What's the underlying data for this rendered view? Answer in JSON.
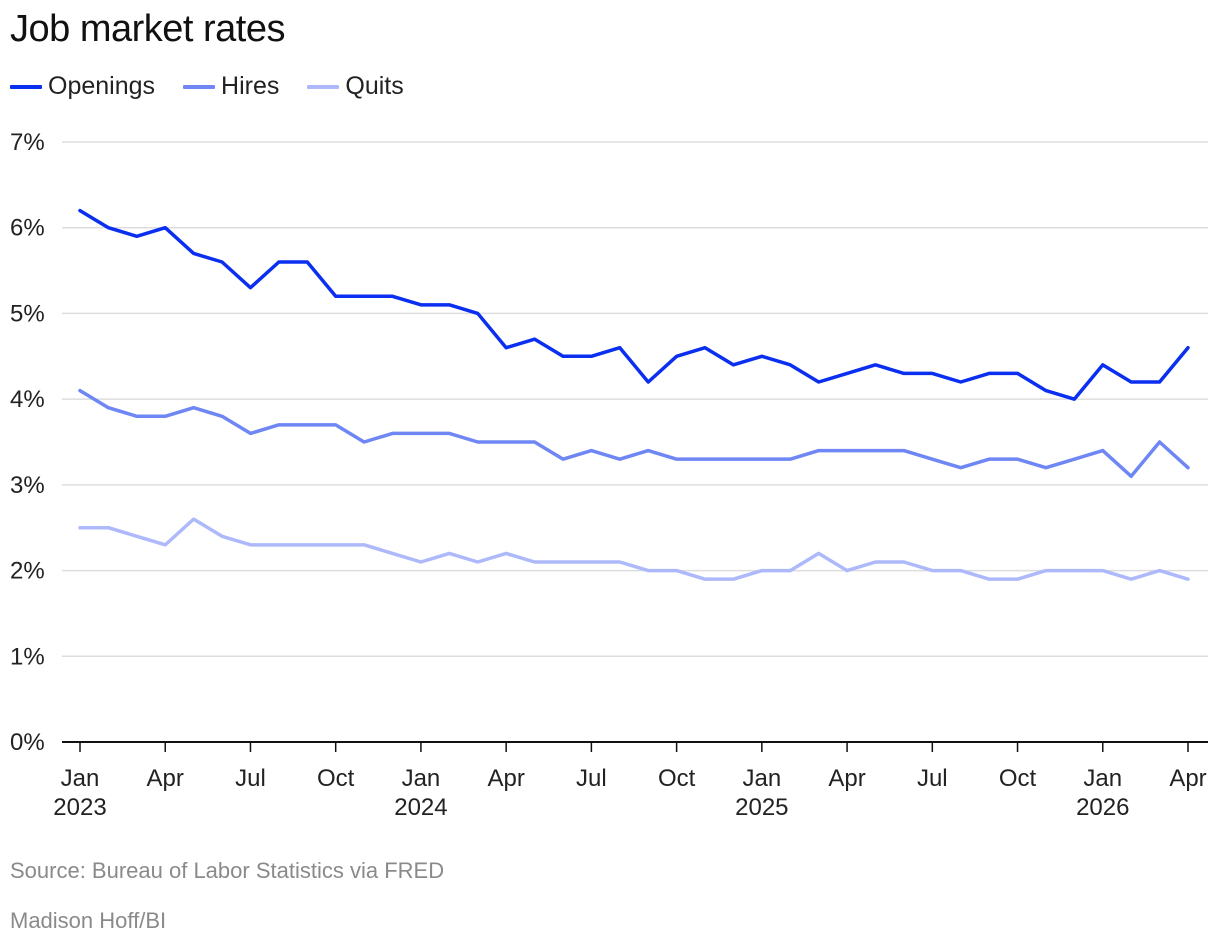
{
  "chart_data": {
    "type": "line",
    "title": "Job market rates",
    "xlabel": "",
    "ylabel": "",
    "ylim": [
      0,
      7
    ],
    "yticks": [
      "0%",
      "1%",
      "2%",
      "3%",
      "4%",
      "5%",
      "6%",
      "7%"
    ],
    "xticks": [
      {
        "index": 0,
        "month": "Jan",
        "year": "2023"
      },
      {
        "index": 3,
        "month": "Apr",
        "year": ""
      },
      {
        "index": 6,
        "month": "Jul",
        "year": ""
      },
      {
        "index": 9,
        "month": "Oct",
        "year": ""
      },
      {
        "index": 12,
        "month": "Jan",
        "year": "2024"
      },
      {
        "index": 15,
        "month": "Apr",
        "year": ""
      },
      {
        "index": 18,
        "month": "Jul",
        "year": ""
      },
      {
        "index": 21,
        "month": "Oct",
        "year": ""
      },
      {
        "index": 24,
        "month": "Jan",
        "year": "2025"
      },
      {
        "index": 27,
        "month": "Apr",
        "year": ""
      },
      {
        "index": 30,
        "month": "Jul",
        "year": ""
      },
      {
        "index": 33,
        "month": "Oct",
        "year": ""
      },
      {
        "index": 36,
        "month": "Jan",
        "year": "2026"
      },
      {
        "index": 39,
        "month": "Apr",
        "year": ""
      }
    ],
    "x": [
      "2023-01",
      "2023-02",
      "2023-03",
      "2023-04",
      "2023-05",
      "2023-06",
      "2023-07",
      "2023-08",
      "2023-09",
      "2023-10",
      "2023-11",
      "2023-12",
      "2024-01",
      "2024-02",
      "2024-03",
      "2024-04",
      "2024-05",
      "2024-06",
      "2024-07",
      "2024-08",
      "2024-09",
      "2024-10",
      "2024-11",
      "2024-12",
      "2025-01",
      "2025-02",
      "2025-03",
      "2025-04",
      "2025-05",
      "2025-06",
      "2025-07",
      "2025-08",
      "2025-09",
      "2025-10",
      "2025-11",
      "2025-12",
      "2026-01",
      "2026-02",
      "2026-03",
      "2026-04"
    ],
    "series": [
      {
        "name": "Openings",
        "color": "#0a2ff0",
        "values": [
          6.2,
          6.0,
          5.9,
          6.0,
          5.7,
          5.6,
          5.3,
          5.6,
          5.6,
          5.2,
          5.2,
          5.2,
          5.1,
          5.1,
          5.0,
          4.6,
          4.7,
          4.5,
          4.5,
          4.6,
          4.2,
          4.5,
          4.6,
          4.4,
          4.5,
          4.4,
          4.2,
          4.3,
          4.4,
          4.3,
          4.3,
          4.2,
          4.3,
          4.3,
          4.1,
          4.0,
          4.4,
          4.2,
          4.2,
          4.6
        ]
      },
      {
        "name": "Hires",
        "color": "#6f87f5",
        "values": [
          4.1,
          3.9,
          3.8,
          3.8,
          3.9,
          3.8,
          3.6,
          3.7,
          3.7,
          3.7,
          3.5,
          3.6,
          3.6,
          3.6,
          3.5,
          3.5,
          3.5,
          3.3,
          3.4,
          3.3,
          3.4,
          3.3,
          3.3,
          3.3,
          3.3,
          3.3,
          3.4,
          3.4,
          3.4,
          3.4,
          3.3,
          3.2,
          3.3,
          3.3,
          3.2,
          3.3,
          3.4,
          3.1,
          3.5,
          3.2
        ]
      },
      {
        "name": "Quits",
        "color": "#adb9fa",
        "values": [
          2.5,
          2.5,
          2.4,
          2.3,
          2.6,
          2.4,
          2.3,
          2.3,
          2.3,
          2.3,
          2.3,
          2.2,
          2.1,
          2.2,
          2.1,
          2.2,
          2.1,
          2.1,
          2.1,
          2.1,
          2.0,
          2.0,
          1.9,
          1.9,
          2.0,
          2.0,
          2.2,
          2.0,
          2.1,
          2.1,
          2.0,
          2.0,
          1.9,
          1.9,
          2.0,
          2.0,
          2.0,
          1.9,
          2.0,
          1.9
        ]
      }
    ],
    "legend_position": "top-left",
    "grid": true
  },
  "footer": {
    "source": "Source: Bureau of Labor Statistics via FRED",
    "credit": "Madison Hoff/BI"
  }
}
